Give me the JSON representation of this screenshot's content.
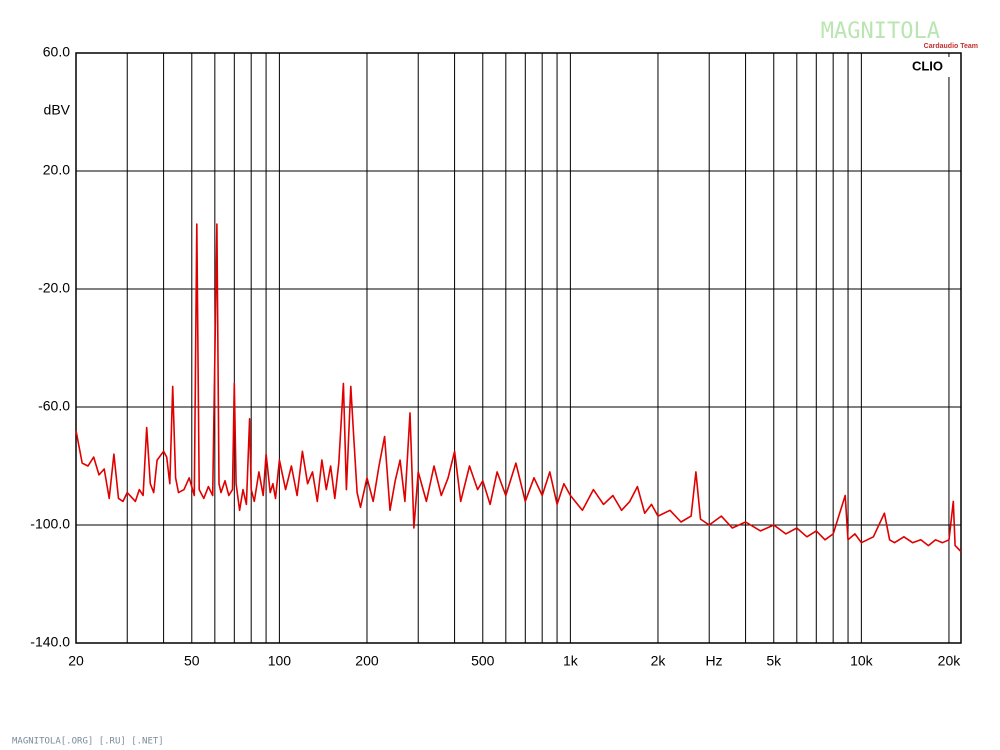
{
  "chart_data": {
    "type": "line",
    "y_label": "dBV",
    "x_label": "Hz",
    "brand": "CLIO",
    "watermark": "MAGNITOLA",
    "watermark_sub": "Cardaudio Team",
    "footer": "MAGNITOLA[.ORG] [.RU] [.NET]",
    "color": "#e00000",
    "xscale": "log",
    "grid": true,
    "xlim": [
      20,
      22000
    ],
    "ylim": [
      -140,
      60
    ],
    "yticks": [
      {
        "value": -140,
        "label": "-140.0"
      },
      {
        "value": -100,
        "label": "-100.0"
      },
      {
        "value": -60,
        "label": "-60.0"
      },
      {
        "value": -20,
        "label": "-20.0"
      },
      {
        "value": 20,
        "label": "20.0"
      },
      {
        "value": 60,
        "label": "60.0"
      }
    ],
    "xticks": [
      20,
      50,
      100,
      200,
      500,
      {
        "value": 1000,
        "label": "1k"
      },
      {
        "value": 2000,
        "label": "2k"
      },
      {
        "value": 5000,
        "label": "5k"
      },
      {
        "value": 10000,
        "label": "10k"
      },
      {
        "value": 20000,
        "label": "20k"
      }
    ],
    "minor_xticks": [
      30,
      40,
      60,
      70,
      80,
      90,
      300,
      400,
      600,
      700,
      800,
      900,
      3000,
      4000,
      6000,
      7000,
      8000,
      9000
    ],
    "x": [
      20,
      21,
      22,
      23,
      24,
      25,
      26,
      27,
      28,
      29,
      30,
      32,
      33,
      34,
      35,
      36,
      37,
      38,
      40,
      41,
      42,
      43,
      44,
      45,
      47,
      49,
      51,
      52,
      53,
      55,
      57,
      59,
      61,
      62,
      63,
      65,
      67,
      69,
      70,
      71,
      73,
      75,
      77,
      79,
      80,
      82,
      85,
      88,
      90,
      93,
      95,
      97,
      100,
      105,
      110,
      115,
      120,
      125,
      130,
      135,
      140,
      145,
      150,
      155,
      160,
      166,
      170,
      176,
      180,
      185,
      190,
      200,
      210,
      220,
      230,
      240,
      250,
      260,
      270,
      281,
      290,
      300,
      320,
      340,
      360,
      380,
      400,
      420,
      450,
      480,
      500,
      530,
      560,
      600,
      650,
      700,
      750,
      800,
      850,
      900,
      950,
      1000,
      1100,
      1200,
      1300,
      1400,
      1500,
      1600,
      1700,
      1800,
      1900,
      2000,
      2200,
      2400,
      2600,
      2700,
      2800,
      3000,
      3300,
      3600,
      4000,
      4500,
      5000,
      5500,
      6000,
      6500,
      7000,
      7500,
      8000,
      8800,
      9000,
      9500,
      10000,
      11000,
      12000,
      12500,
      13000,
      14000,
      15000,
      16000,
      17000,
      18000,
      19000,
      20000,
      20700,
      21000,
      22000
    ],
    "values": [
      -68,
      -79,
      -80,
      -77,
      -83,
      -81,
      -91,
      -76,
      -91,
      -92,
      -89,
      -92,
      -88,
      -90,
      -67,
      -86,
      -89,
      -78,
      -75,
      -77,
      -86,
      -53,
      -84,
      -89,
      -88,
      -84,
      -90,
      2,
      -88,
      -91,
      -87,
      -90,
      2,
      -86,
      -89,
      -85,
      -90,
      -88,
      -52,
      -86,
      -95,
      -88,
      -93,
      -64,
      -88,
      -92,
      -82,
      -90,
      -76,
      -89,
      -86,
      -91,
      -78,
      -88,
      -80,
      -90,
      -75,
      -86,
      -82,
      -92,
      -78,
      -88,
      -80,
      -91,
      -79,
      -52,
      -88,
      -53,
      -70,
      -89,
      -94,
      -84,
      -92,
      -80,
      -70,
      -95,
      -85,
      -78,
      -92,
      -62,
      -101,
      -82,
      -92,
      -80,
      -90,
      -84,
      -75,
      -92,
      -80,
      -88,
      -85,
      -93,
      -82,
      -90,
      -79,
      -92,
      -84,
      -90,
      -82,
      -93,
      -86,
      -90,
      -95,
      -88,
      -93,
      -90,
      -95,
      -92,
      -87,
      -96,
      -93,
      -97,
      -95,
      -99,
      -97,
      -82,
      -98,
      -100,
      -97,
      -101,
      -99,
      -102,
      -100,
      -103,
      -101,
      -104,
      -102,
      -105,
      -103,
      -90,
      -105,
      -103,
      -106,
      -104,
      -96,
      -105,
      -106,
      -104,
      -106,
      -105,
      -107,
      -105,
      -106,
      -105,
      -92,
      -107,
      -109
    ]
  }
}
